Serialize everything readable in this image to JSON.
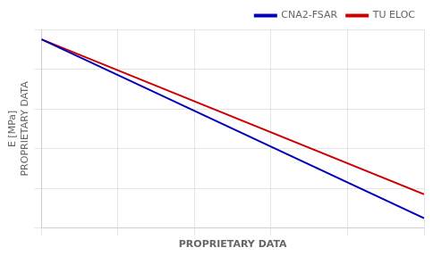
{
  "chart_data": {
    "type": "line",
    "x_label": "PROPRIETARY DATA",
    "y_label": [
      "E [MPa]",
      "PROPRIETARY DATA"
    ],
    "x": [
      0.0,
      1.0
    ],
    "series": [
      {
        "name": "CNA2-FSAR",
        "color": "#0000bb",
        "values": [
          0.95,
          0.05
        ]
      },
      {
        "name": "TU ELOC",
        "color": "#cc0000",
        "values": [
          0.95,
          0.17
        ]
      }
    ],
    "xlim": [
      0,
      1
    ],
    "ylim": [
      0,
      1
    ],
    "xticks": [
      0,
      0.2,
      0.4,
      0.6,
      0.8,
      1
    ],
    "yticks": [
      0,
      0.2,
      0.4,
      0.6,
      0.8,
      1
    ],
    "tick_labels": false,
    "grid": true,
    "legend": "upper right"
  }
}
